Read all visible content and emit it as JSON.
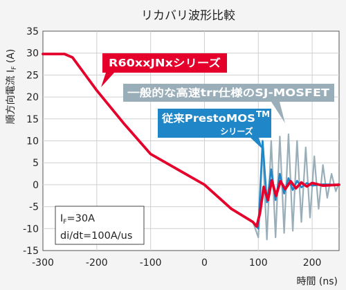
{
  "chart_data": {
    "type": "line",
    "title": "リカバリ波形比較",
    "xlabel": "時間 (ns)",
    "ylabel": "順方向電流 I",
    "ylabel_sub": "F",
    "ylabel_unit": " (A)",
    "xlim": [
      -300,
      250
    ],
    "ylim": [
      -15,
      35
    ],
    "x_ticks": [
      -300,
      -200,
      -100,
      0,
      100,
      200
    ],
    "y_ticks": [
      35,
      30,
      25,
      20,
      15,
      10,
      5,
      0,
      -5,
      -10,
      -15
    ],
    "grid": true,
    "colors": {
      "R60xxJNx": "#e4002b",
      "general_sj_mosfet": "#99aeb9",
      "prestomos": "#1f86c8"
    },
    "series": [
      {
        "name": "R60xxJNxシリーズ",
        "key": "R60xxJNx",
        "x": [
          -300,
          -260,
          -245,
          -200,
          -150,
          -100,
          -50,
          0,
          50,
          90,
          97,
          103,
          110,
          118,
          125,
          133,
          141,
          150,
          160,
          170,
          180,
          190,
          200,
          220,
          250
        ],
        "y": [
          29.8,
          29.8,
          29.0,
          21.5,
          14.0,
          7.0,
          3.5,
          0.0,
          -5.5,
          -8.5,
          -9.5,
          -6.5,
          -0.5,
          -3.5,
          1.0,
          -2.5,
          0.8,
          -1.0,
          0.8,
          -0.8,
          0.5,
          -0.4,
          0.4,
          -0.2,
          0.0
        ]
      },
      {
        "name": "一般的な高速trr仕様のSJ-MOSFET",
        "key": "general_sj_mosfet",
        "x": [
          -300,
          -260,
          -245,
          -200,
          -150,
          -100,
          -50,
          0,
          50,
          90,
          100,
          108,
          116,
          124,
          132,
          140,
          148,
          156,
          164,
          172,
          180,
          188,
          196,
          204,
          212,
          220,
          228,
          236,
          244,
          250
        ],
        "y": [
          29.8,
          29.8,
          29.0,
          21.5,
          14.0,
          7.0,
          3.5,
          0.0,
          -5.5,
          -8.5,
          -12.0,
          8.5,
          -12.5,
          10.0,
          -12.0,
          11.0,
          -11.0,
          11.5,
          -10.5,
          10.0,
          -8.5,
          8.5,
          -7.5,
          6.5,
          -5.5,
          4.5,
          -3.0,
          2.5,
          -1.5,
          0.5
        ]
      },
      {
        "name": "従来PrestoMOS™シリーズ",
        "key": "prestomos",
        "x": [
          -300,
          -260,
          -245,
          -200,
          -150,
          -100,
          -50,
          0,
          50,
          90,
          100,
          108,
          116,
          124,
          132,
          140,
          148,
          156,
          164,
          172,
          180,
          190,
          200,
          220,
          250
        ],
        "y": [
          29.8,
          29.8,
          29.0,
          21.5,
          14.0,
          7.0,
          3.5,
          0.0,
          -5.5,
          -8.5,
          -10.0,
          10.0,
          -4.0,
          3.5,
          -3.5,
          2.5,
          -2.0,
          1.5,
          -1.2,
          0.9,
          -0.6,
          0.4,
          -0.2,
          0.1,
          0.0
        ]
      }
    ],
    "annotations": {
      "callout_red": "R60xxJNxシリーズ",
      "callout_gray": "一般的な高速trr仕様のSJ-MOSFET",
      "callout_blue_line1": "従来PrestoMOS",
      "callout_blue_tm": "TM",
      "callout_blue_line2": "シリーズ",
      "conditions_line1_a": "I",
      "conditions_line1_sub": "F",
      "conditions_line1_b": "=30A",
      "conditions_line2": "di/dt=100A/us"
    }
  }
}
